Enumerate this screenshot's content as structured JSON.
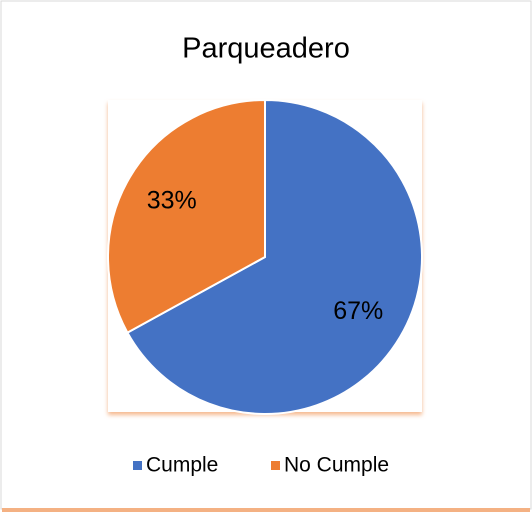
{
  "chart_data": {
    "type": "pie",
    "title": "Parqueadero",
    "categories": [
      "Cumple",
      "No Cumple"
    ],
    "values": [
      67,
      33
    ],
    "value_labels": [
      "67%",
      "33%"
    ],
    "colors": [
      "#4472c4",
      "#ed7d31"
    ],
    "legend": "bottom"
  }
}
